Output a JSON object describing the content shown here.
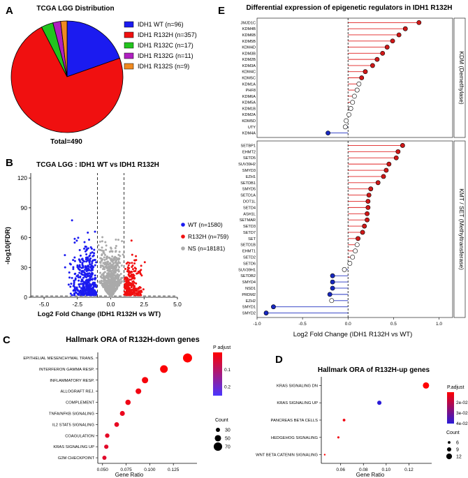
{
  "panels": {
    "A": "A",
    "B": "B",
    "C": "C",
    "D": "D",
    "E": "E"
  },
  "chart_data": [
    {
      "panel": "A",
      "type": "pie",
      "title": "TCGA LGG Distribution",
      "slices": [
        {
          "label": "IDH1 WT (n=96)",
          "value": 96,
          "color": "#1b1bf0"
        },
        {
          "label": "IDH1 R132H (n=357)",
          "value": 357,
          "color": "#f01010"
        },
        {
          "label": "IDH1 R132C (n=17)",
          "value": 17,
          "color": "#22c41e"
        },
        {
          "label": "IDH1 R132G (n=11)",
          "value": 11,
          "color": "#b020c0"
        },
        {
          "label": "IDH1 R132S (n=9)",
          "value": 9,
          "color": "#f08a20"
        }
      ],
      "total_label": "Total=490",
      "legend": "right"
    },
    {
      "panel": "B",
      "type": "scatter",
      "title": "TCGA LGG : IDH1 WT vs IDH1 R132H",
      "xlabel": "Log2 Fold Change (IDH1 R132H vs WT)",
      "ylabel": "-log10(FDR)",
      "xlim": [
        -6,
        5
      ],
      "ylim": [
        0,
        125
      ],
      "xticks": [
        "-5.0",
        "-2.5",
        "0.0",
        "2.5",
        "5.0"
      ],
      "xtick_values": [
        -5,
        -2.5,
        0,
        2.5,
        5
      ],
      "yticks": [
        "0",
        "30",
        "60",
        "90",
        "120"
      ],
      "ytick_values": [
        0,
        30,
        60,
        90,
        120
      ],
      "thresholds": {
        "log2fc": [
          -1,
          1
        ],
        "neg_log10_fdr": 1.3
      },
      "series": [
        {
          "name": "WT (n=1580)",
          "color": "#1b1bf0",
          "count": 1580
        },
        {
          "name": "R132H (n=759)",
          "color": "#f01010",
          "count": 759
        },
        {
          "name": "NS (n=18181)",
          "color": "#aaaaaa",
          "count": 18181
        }
      ],
      "legend": "right"
    },
    {
      "panel": "C",
      "type": "scatter",
      "title": "Hallmark ORA of R132H-down genes",
      "xlabel": "Gene Ratio",
      "xlim": [
        0.045,
        0.15
      ],
      "xticks": [
        "0.050",
        "0.075",
        "0.100",
        "0.125"
      ],
      "xtick_values": [
        0.05,
        0.075,
        0.1,
        0.125
      ],
      "categories": [
        "EPITHELIAL MESENCHYMAL TRANS.",
        "INTERFERON GAMMA RESP.",
        "INFLAMMATORY RESP.",
        "ALLOGRAFT REJ.",
        "COMPLEMENT",
        "TNFA/NFKB SIGNALING",
        "IL2 STAT5 SIGNALING",
        "COAGULATION",
        "KRAS SIGNALING UP",
        "G2M CHECKPOINT"
      ],
      "x": [
        0.14,
        0.115,
        0.095,
        0.088,
        0.077,
        0.071,
        0.065,
        0.055,
        0.054,
        0.052
      ],
      "counts": [
        76,
        63,
        50,
        44,
        41,
        37,
        35,
        32,
        31,
        30
      ],
      "p_adjust": [
        0.0,
        0.005,
        0.012,
        0.018,
        0.022,
        0.028,
        0.032,
        0.036,
        0.04,
        0.042
      ],
      "colorbar": {
        "title": "P adjust",
        "ticks": [
          "0.1",
          "0.2"
        ],
        "tick_values": [
          0.1,
          0.2
        ],
        "range": [
          0,
          0.25
        ],
        "low_color": "#ff0000",
        "high_color": "#4a35ff"
      },
      "size_legend": {
        "title": "Count",
        "values": [
          30,
          50,
          70
        ],
        "labels": [
          "30",
          "50",
          "70"
        ]
      }
    },
    {
      "panel": "D",
      "type": "scatter",
      "title": "Hallmark ORA of R132H-up genes",
      "xlabel": "Gene Ratio",
      "xlim": [
        0.043,
        0.14
      ],
      "xticks": [
        "0.06",
        "0.08",
        "0.10",
        "0.12"
      ],
      "xtick_values": [
        0.06,
        0.08,
        0.1,
        0.12
      ],
      "categories": [
        "KRAS SIGNALING DN",
        "KRAS SIGNALING UP",
        "PANCREAS BETA CELLS",
        "HEDGEHOG SIGNALING",
        "WNT BETA CATENIN SIGNALING"
      ],
      "x": [
        0.135,
        0.094,
        0.063,
        0.058,
        0.046
      ],
      "counts": [
        13,
        9,
        6,
        5,
        4
      ],
      "p_adjust": [
        0.008,
        0.04,
        0.012,
        0.012,
        0.01
      ],
      "colorbar": {
        "title": "P.adjust",
        "ticks": [
          "2e-02",
          "3e-02",
          "4e-02"
        ],
        "tick_values": [
          0.02,
          0.03,
          0.04
        ],
        "range": [
          0.01,
          0.04
        ],
        "low_color": "#ff0000",
        "high_color": "#2a1bd8"
      },
      "size_legend": {
        "title": "Count",
        "values": [
          6,
          9,
          12
        ],
        "labels": [
          "6",
          "9",
          "12"
        ]
      }
    },
    {
      "panel": "E",
      "type": "lollipop",
      "title": "Differential expression of epigenetic regulators in IDH1 R132H",
      "xlabel": "Log2 Fold Change (IDH1 R132H vs WT)",
      "xlim": [
        -1.0,
        1.15
      ],
      "xticks": [
        "-1.0",
        "-0.5",
        "0.0",
        "0.5",
        "1.0"
      ],
      "xtick_values": [
        -1.0,
        -0.5,
        0.0,
        0.5,
        1.0
      ],
      "groups": [
        {
          "label": "KDM (Demethylase)",
          "genes": [
            "JMJD1C",
            "KDM4B",
            "KDM6B",
            "KDM5B",
            "KDM4D",
            "KDM3B",
            "KDM2B",
            "KDM3A",
            "KDM4C",
            "KDM5C",
            "KDM1A",
            "PHF8",
            "KDM6A",
            "KDM5A",
            "KDM1B",
            "KDM2A",
            "KDM5D",
            "UTY",
            "KDM4A"
          ],
          "values": [
            0.78,
            0.63,
            0.56,
            0.49,
            0.43,
            0.38,
            0.32,
            0.27,
            0.19,
            0.15,
            0.12,
            0.1,
            0.07,
            0.05,
            0.03,
            0.01,
            -0.02,
            -0.03,
            -0.22
          ],
          "significant": [
            true,
            true,
            true,
            true,
            true,
            true,
            true,
            true,
            true,
            true,
            false,
            false,
            false,
            false,
            false,
            false,
            false,
            false,
            true
          ]
        },
        {
          "label": "KMT / SET (Methyltransferase)",
          "genes": [
            "SETBP1",
            "EHMT2",
            "SETD5",
            "SUV39H2",
            "SMYD3",
            "EZH1",
            "SETDB1",
            "SMYD5",
            "SETD1A",
            "DOT1L",
            "SETD4",
            "ASH1L",
            "SETMAR",
            "SETD3",
            "SETD7",
            "SET",
            "SETD1B",
            "EHMT1",
            "SETD2",
            "SETD6",
            "SUV39H1",
            "SETDB2",
            "SMYD4",
            "NSD1",
            "PRDM2",
            "EZH2",
            "SMYD1",
            "SMYD2"
          ],
          "values": [
            0.6,
            0.55,
            0.53,
            0.45,
            0.42,
            0.39,
            0.33,
            0.25,
            0.23,
            0.22,
            0.22,
            0.21,
            0.21,
            0.18,
            0.16,
            0.11,
            0.1,
            0.08,
            0.05,
            0.02,
            -0.04,
            -0.17,
            -0.17,
            -0.17,
            -0.2,
            -0.18,
            -0.82,
            -0.9
          ],
          "significant": [
            true,
            true,
            true,
            true,
            true,
            true,
            true,
            true,
            true,
            true,
            true,
            true,
            true,
            true,
            true,
            true,
            false,
            false,
            false,
            false,
            false,
            true,
            true,
            true,
            true,
            false,
            true,
            true
          ]
        }
      ]
    }
  ]
}
